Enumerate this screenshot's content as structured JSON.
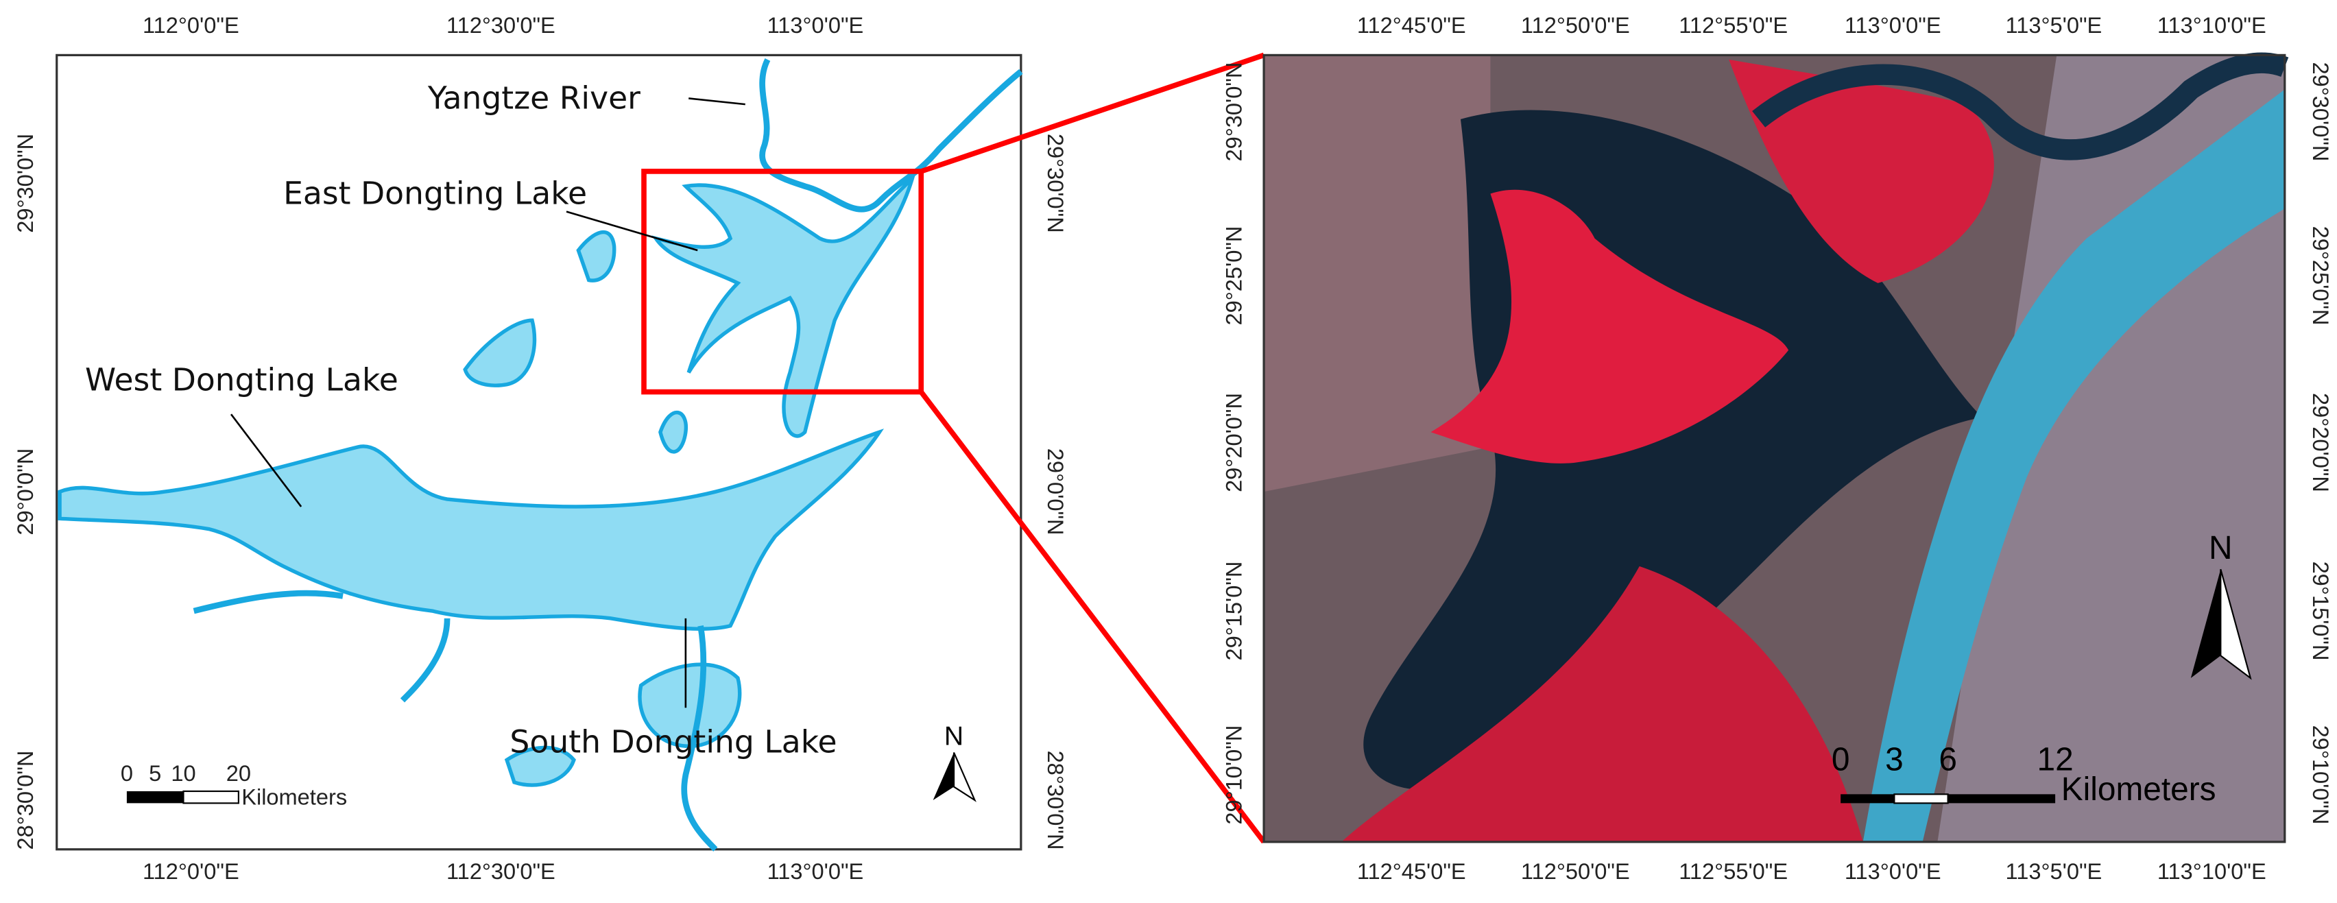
{
  "left_map": {
    "lon_ticks": [
      "112°0'0\"E",
      "112°30'0\"E",
      "113°0'0\"E"
    ],
    "lat_ticks": [
      "29°30'0\"N",
      "29°0'0\"N",
      "28°30'0\"N"
    ],
    "labels": {
      "yangtze": "Yangtze River",
      "east": "East Dongting Lake",
      "west": "West Dongting Lake",
      "south": "South Dongting Lake"
    },
    "north": "N",
    "scale": {
      "ticks": [
        "0",
        "5",
        "10",
        "20"
      ],
      "unit": "Kilometers"
    }
  },
  "right_map": {
    "lon_ticks": [
      "112°45'0\"E",
      "112°50'0\"E",
      "112°55'0\"E",
      "113°0'0\"E",
      "113°5'0\"E",
      "113°10'0\"E"
    ],
    "lat_ticks": [
      "29°30'0\"N",
      "29°25'0\"N",
      "29°20'0\"N",
      "29°15'0\"N",
      "29°10'0\"N"
    ],
    "north": "N",
    "scale": {
      "ticks": [
        "0",
        "3",
        "6",
        "12"
      ],
      "unit": "Kilometers"
    }
  }
}
